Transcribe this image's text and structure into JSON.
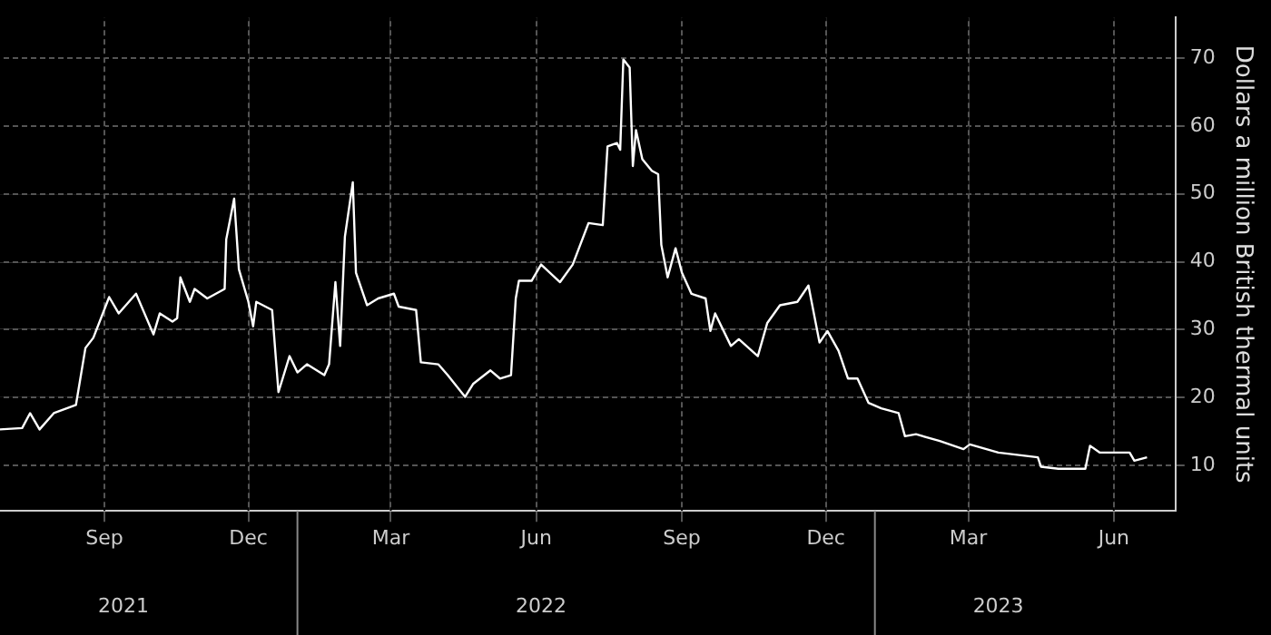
{
  "chart_data": {
    "type": "line",
    "ylabel": "Dollars a million British thermal units",
    "xlim": [
      "2021-06-27",
      "2023-07-10"
    ],
    "xticks": [
      {
        "value": "2021-09-01",
        "label": "Sep"
      },
      {
        "value": "2021-12-01",
        "label": "Dec"
      },
      {
        "value": "2022-03-01",
        "label": "Mar"
      },
      {
        "value": "2022-06-01",
        "label": "Jun"
      },
      {
        "value": "2022-09-01",
        "label": "Sep"
      },
      {
        "value": "2022-12-01",
        "label": "Dec"
      },
      {
        "value": "2023-03-01",
        "label": "Mar"
      },
      {
        "value": "2023-06-01",
        "label": "Jun"
      }
    ],
    "x2lim": [
      "2021-06-27",
      "2023-07-10"
    ],
    "x2ticks": [
      {
        "value": "2021-09-13",
        "label": "2021"
      },
      {
        "value": "2022-06-04",
        "label": "2022"
      },
      {
        "value": "2023-03-20",
        "label": "2023"
      }
    ],
    "ylim": [
      3.3,
      76
    ],
    "yticks": [
      10,
      20,
      30,
      40,
      50,
      60,
      70
    ],
    "grid": true,
    "line_style": "solid",
    "marker": "none",
    "series": [
      {
        "color": "#ffffff",
        "x": [
          "2021-06-27",
          "2021-07-11",
          "2021-07-16",
          "2021-07-22",
          "2021-07-31",
          "2021-08-14",
          "2021-08-20",
          "2021-08-25",
          "2021-09-04",
          "2021-09-10",
          "2021-09-21",
          "2021-10-02",
          "2021-10-06",
          "2021-10-14",
          "2021-10-17",
          "2021-10-19",
          "2021-10-25",
          "2021-10-28",
          "2021-11-05",
          "2021-11-16",
          "2021-11-17",
          "2021-11-22",
          "2021-11-25",
          "2021-12-01",
          "2021-12-04",
          "2021-12-06",
          "2021-12-16",
          "2021-12-20",
          "2021-12-27",
          "2022-01-01",
          "2022-01-07",
          "2022-01-18",
          "2022-01-21",
          "2022-01-25",
          "2022-01-28",
          "2022-01-31",
          "2022-02-05",
          "2022-02-07",
          "2022-02-14",
          "2022-02-21",
          "2022-03-03",
          "2022-03-06",
          "2022-03-17",
          "2022-03-20",
          "2022-03-31",
          "2022-04-06",
          "2022-04-17",
          "2022-04-22",
          "2022-05-03",
          "2022-05-09",
          "2022-05-16",
          "2022-05-19",
          "2022-05-21",
          "2022-05-29",
          "2022-06-04",
          "2022-06-16",
          "2022-06-24",
          "2022-07-04",
          "2022-07-13",
          "2022-07-16",
          "2022-07-22",
          "2022-07-24",
          "2022-07-26",
          "2022-07-30",
          "2022-08-01",
          "2022-08-03",
          "2022-08-07",
          "2022-08-13",
          "2022-08-17",
          "2022-08-19",
          "2022-08-23",
          "2022-08-28",
          "2022-09-01",
          "2022-09-07",
          "2022-09-16",
          "2022-09-19",
          "2022-09-22",
          "2022-10-02",
          "2022-10-07",
          "2022-10-19",
          "2022-10-25",
          "2022-11-02",
          "2022-11-13",
          "2022-11-20",
          "2022-11-27",
          "2022-12-02",
          "2022-12-09",
          "2022-12-15",
          "2022-12-21",
          "2022-12-28",
          "2023-01-05",
          "2023-01-16",
          "2023-01-20",
          "2023-01-27",
          "2023-02-11",
          "2023-02-26",
          "2023-03-02",
          "2023-03-20",
          "2023-04-14",
          "2023-04-16",
          "2023-04-27",
          "2023-05-14",
          "2023-05-17",
          "2023-05-23",
          "2023-06-11",
          "2023-06-14",
          "2023-06-22"
        ],
        "values": [
          15.3,
          15.5,
          17.7,
          15.3,
          17.7,
          18.9,
          27.3,
          28.8,
          34.8,
          32.4,
          35.3,
          29.3,
          32.4,
          31.2,
          31.7,
          37.7,
          34.1,
          36.0,
          34.6,
          36.0,
          43.3,
          49.3,
          38.9,
          34.1,
          30.5,
          34.1,
          32.9,
          20.8,
          26.1,
          23.7,
          24.9,
          23.3,
          24.9,
          37.0,
          27.6,
          43.7,
          51.7,
          38.4,
          33.6,
          34.6,
          35.3,
          33.4,
          32.9,
          25.2,
          24.9,
          23.3,
          20.1,
          22.0,
          24.0,
          22.8,
          23.3,
          34.6,
          37.2,
          37.2,
          39.6,
          37.0,
          39.6,
          45.7,
          45.4,
          57.0,
          57.5,
          56.5,
          69.8,
          68.6,
          54.1,
          59.4,
          55.1,
          53.4,
          52.9,
          42.5,
          37.7,
          42.0,
          38.4,
          35.3,
          34.6,
          29.8,
          32.4,
          27.6,
          28.6,
          26.1,
          31.0,
          33.6,
          34.1,
          36.5,
          28.1,
          29.8,
          26.9,
          22.8,
          22.8,
          19.2,
          18.4,
          17.7,
          14.3,
          14.6,
          13.6,
          12.4,
          13.1,
          11.9,
          11.2,
          9.8,
          9.5,
          9.5,
          12.9,
          11.9,
          11.9,
          10.7,
          11.2
        ]
      }
    ]
  }
}
